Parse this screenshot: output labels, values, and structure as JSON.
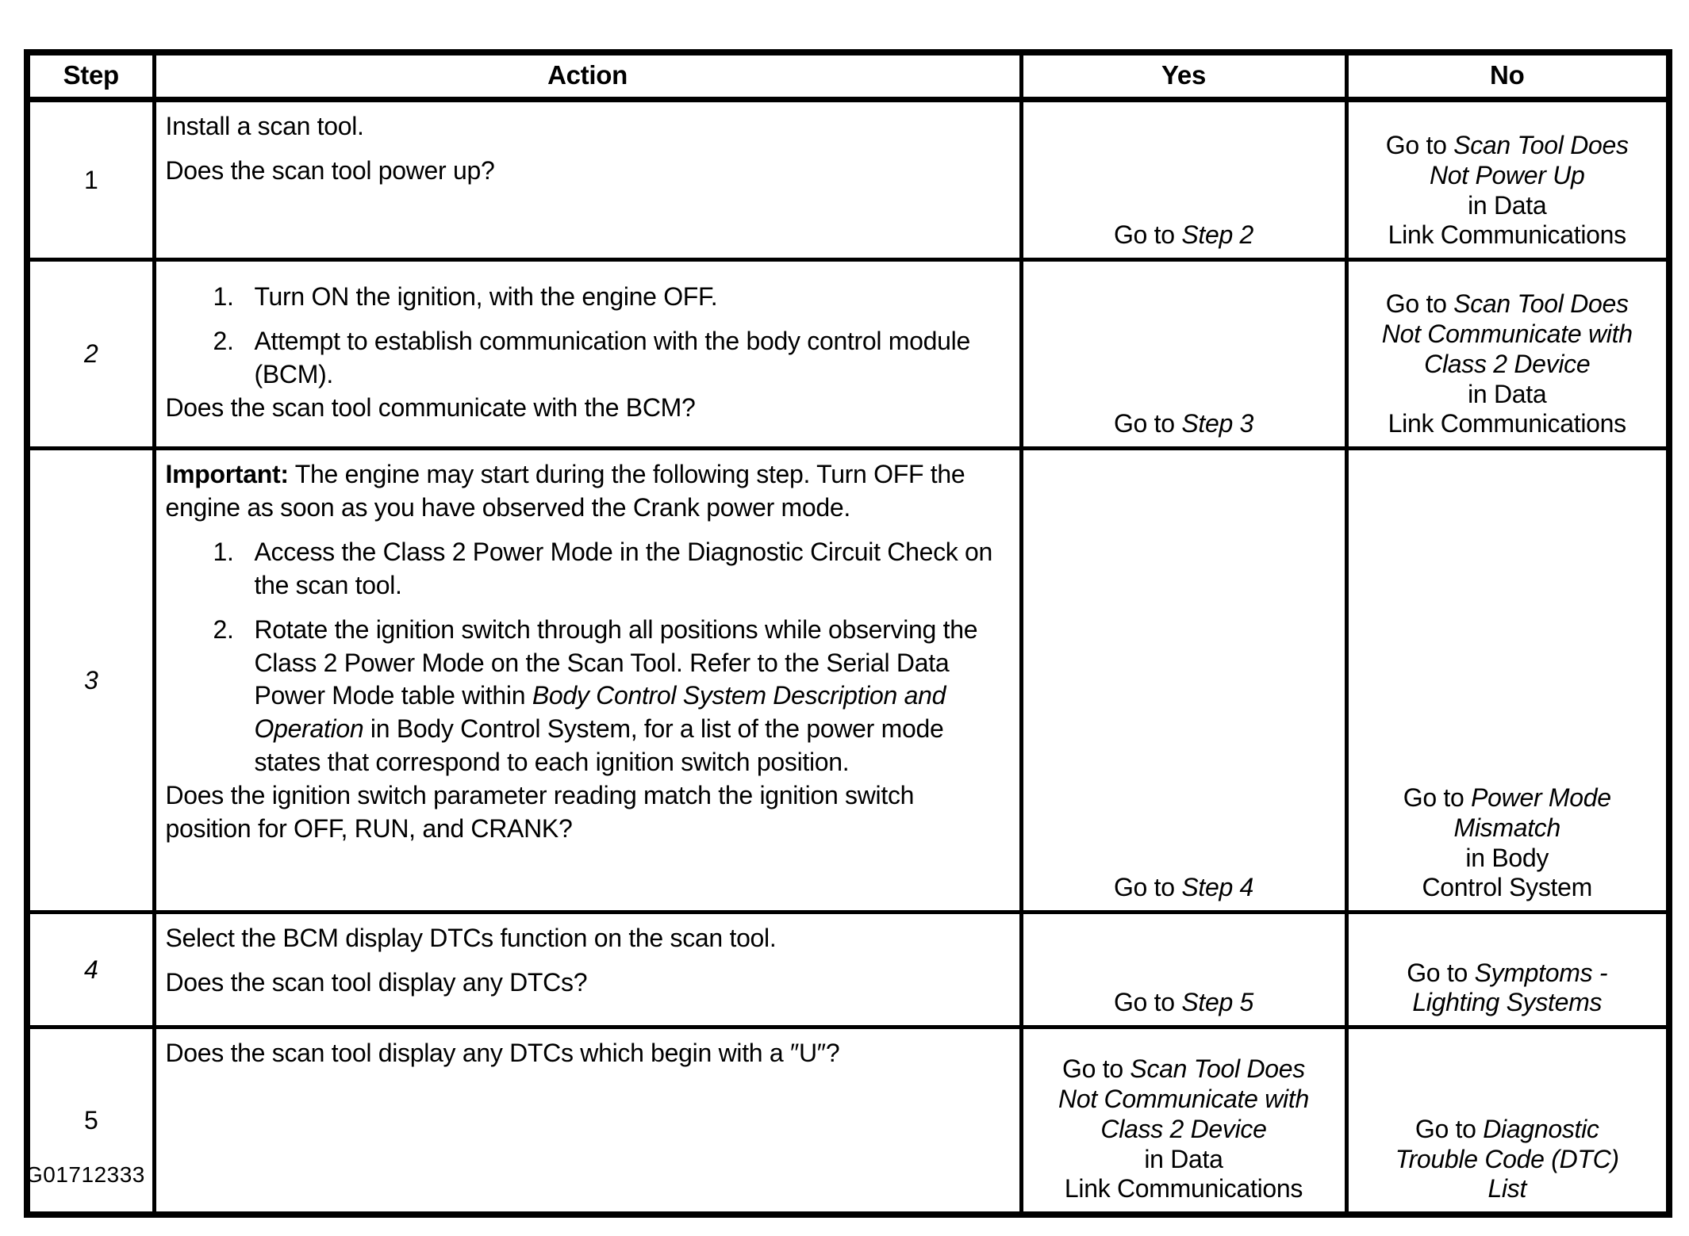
{
  "page": {
    "figure_id": "G01712333"
  },
  "table": {
    "headers": [
      "Step",
      "Action",
      "Yes",
      "No"
    ],
    "rows": [
      {
        "step": {
          "label": "1",
          "italic": false
        },
        "action": [
          {
            "kind": "text",
            "segments": [
              {
                "t": "Install a scan tool."
              }
            ]
          },
          {
            "kind": "text",
            "segments": [
              {
                "t": "Does the scan tool power up?"
              }
            ]
          }
        ],
        "yes": {
          "lines": [
            [
              {
                "t": "Go to "
              },
              {
                "t": "Step 2",
                "i": true
              }
            ]
          ]
        },
        "no": {
          "lines": [
            [
              {
                "t": "Go to "
              },
              {
                "t": "Scan Tool Does",
                "i": true
              }
            ],
            [
              {
                "t": "Not Power Up",
                "i": true
              }
            ],
            [
              {
                "t": "in Data"
              }
            ],
            [
              {
                "t": "Link Communications"
              }
            ]
          ]
        }
      },
      {
        "step": {
          "label": "2",
          "italic": true
        },
        "action": [
          {
            "kind": "item",
            "num": "1.",
            "segments": [
              {
                "t": "Turn ON the ignition, with the engine OFF."
              }
            ]
          },
          {
            "kind": "item",
            "num": "2.",
            "segments": [
              {
                "t": "Attempt to establish communication with the body control module (BCM)."
              }
            ]
          },
          {
            "kind": "text",
            "segments": [
              {
                "t": "Does the scan tool communicate with the BCM?"
              }
            ]
          }
        ],
        "yes": {
          "lines": [
            [
              {
                "t": "Go to "
              },
              {
                "t": "Step 3",
                "i": true
              }
            ]
          ]
        },
        "no": {
          "lines": [
            [
              {
                "t": "Go to "
              },
              {
                "t": "Scan Tool Does",
                "i": true
              }
            ],
            [
              {
                "t": "Not Communicate with",
                "i": true
              }
            ],
            [
              {
                "t": "Class 2 Device",
                "i": true
              }
            ],
            [
              {
                "t": "in Data"
              }
            ],
            [
              {
                "t": "Link Communications"
              }
            ]
          ]
        }
      },
      {
        "step": {
          "label": "3",
          "italic": true
        },
        "action": [
          {
            "kind": "text",
            "segments": [
              {
                "t": "Important:",
                "b": true
              },
              {
                "t": " The engine may start during the following step. Turn OFF the engine as soon as you have observed the Crank power mode."
              }
            ]
          },
          {
            "kind": "item",
            "num": "1.",
            "segments": [
              {
                "t": "Access the Class 2 Power Mode in the Diagnostic Circuit Check on the scan tool."
              }
            ]
          },
          {
            "kind": "item",
            "num": "2.",
            "segments": [
              {
                "t": "Rotate the ignition switch through all positions while observing the Class 2 Power Mode on the Scan Tool. Refer to the Serial Data Power Mode table within "
              },
              {
                "t": "Body Control System Description and Operation",
                "i": true
              },
              {
                "t": " in Body Control System, for a list of the power mode states that correspond to each ignition switch position."
              }
            ]
          },
          {
            "kind": "text",
            "segments": [
              {
                "t": "Does the ignition switch parameter reading match the ignition switch position for OFF, RUN, and CRANK?"
              }
            ]
          }
        ],
        "yes": {
          "lines": [
            [
              {
                "t": "Go to "
              },
              {
                "t": "Step 4",
                "i": true
              }
            ]
          ]
        },
        "no": {
          "lines": [
            [
              {
                "t": "Go to "
              },
              {
                "t": "Power Mode",
                "i": true
              }
            ],
            [
              {
                "t": "Mismatch",
                "i": true
              }
            ],
            [
              {
                "t": "in Body"
              }
            ],
            [
              {
                "t": "Control System"
              }
            ]
          ]
        }
      },
      {
        "step": {
          "label": "4",
          "italic": true
        },
        "action": [
          {
            "kind": "text",
            "segments": [
              {
                "t": "Select the BCM display DTCs function on the scan tool."
              }
            ]
          },
          {
            "kind": "text",
            "segments": [
              {
                "t": "Does the scan tool display any DTCs?"
              }
            ]
          }
        ],
        "yes": {
          "lines": [
            [
              {
                "t": "Go to "
              },
              {
                "t": "Step 5",
                "i": true
              }
            ]
          ]
        },
        "no": {
          "lines": [
            [
              {
                "t": "Go to "
              },
              {
                "t": "Symptoms -",
                "i": true
              }
            ],
            [
              {
                "t": "Lighting Systems",
                "i": true
              }
            ]
          ]
        }
      },
      {
        "step": {
          "label": "5",
          "italic": false
        },
        "action": [
          {
            "kind": "text",
            "segments": [
              {
                "t": "Does the scan tool display any DTCs which begin with a ″U″?"
              }
            ]
          }
        ],
        "yes": {
          "lines": [
            [
              {
                "t": "Go to "
              },
              {
                "t": "Scan Tool Does",
                "i": true
              }
            ],
            [
              {
                "t": "Not Communicate with",
                "i": true
              }
            ],
            [
              {
                "t": "Class 2 Device",
                "i": true
              }
            ],
            [
              {
                "t": "in Data"
              }
            ],
            [
              {
                "t": "Link Communications"
              }
            ]
          ]
        },
        "no": {
          "lines": [
            [
              {
                "t": "Go to "
              },
              {
                "t": "Diagnostic",
                "i": true
              }
            ],
            [
              {
                "t": "Trouble Code (DTC)",
                "i": true
              }
            ],
            [
              {
                "t": "List",
                "i": true
              }
            ]
          ]
        }
      }
    ]
  }
}
